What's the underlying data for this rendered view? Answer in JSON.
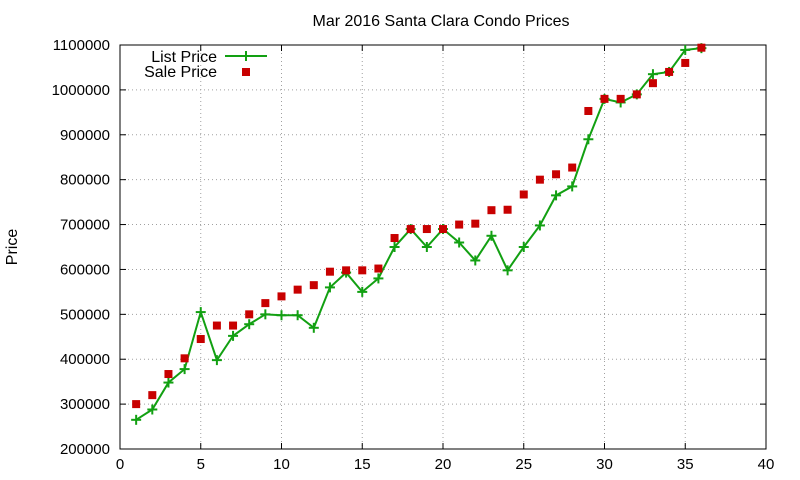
{
  "chart_data": {
    "type": "line",
    "title": "Mar 2016 Santa Clara Condo Prices",
    "xlabel": "",
    "ylabel": "Price",
    "xlim": [
      0,
      40
    ],
    "ylim": [
      200000,
      1100000
    ],
    "xticks": [
      0,
      5,
      10,
      15,
      20,
      25,
      30,
      35,
      40
    ],
    "yticks": [
      200000,
      300000,
      400000,
      500000,
      600000,
      700000,
      800000,
      900000,
      1000000,
      1100000
    ],
    "grid": true,
    "legend_position": "top-left",
    "series": [
      {
        "name": "List Price",
        "kind": "line+cross",
        "color": "#12a012",
        "x": [
          1,
          2,
          3,
          4,
          5,
          6,
          7,
          8,
          9,
          10,
          11,
          12,
          13,
          14,
          15,
          16,
          17,
          18,
          19,
          20,
          21,
          22,
          23,
          24,
          25,
          26,
          27,
          28,
          29,
          30,
          31,
          32,
          33,
          34,
          35,
          36
        ],
        "y": [
          265000,
          288000,
          348000,
          378000,
          505000,
          398000,
          452000,
          478000,
          500000,
          498000,
          498000,
          470000,
          560000,
          593000,
          550000,
          580000,
          650000,
          690000,
          650000,
          690000,
          660000,
          620000,
          675000,
          598000,
          650000,
          698000,
          765000,
          785000,
          890000,
          980000,
          972000,
          990000,
          1035000,
          1040000,
          1089000,
          1093000
        ]
      },
      {
        "name": "Sale Price",
        "kind": "scatter-square",
        "color": "#c80000",
        "x": [
          1,
          2,
          3,
          4,
          5,
          6,
          7,
          8,
          9,
          10,
          11,
          12,
          13,
          14,
          15,
          16,
          17,
          18,
          19,
          20,
          21,
          22,
          23,
          24,
          25,
          26,
          27,
          28,
          29,
          30,
          31,
          32,
          33,
          34,
          35,
          36
        ],
        "y": [
          300000,
          320000,
          367000,
          402000,
          445000,
          475000,
          475000,
          500000,
          525000,
          540000,
          555000,
          565000,
          595000,
          598000,
          598000,
          602000,
          670000,
          690000,
          690000,
          690000,
          700000,
          702000,
          732000,
          733000,
          767000,
          800000,
          812000,
          827000,
          953000,
          980000,
          980000,
          990000,
          1015000,
          1040000,
          1060000,
          1094000
        ]
      }
    ]
  }
}
